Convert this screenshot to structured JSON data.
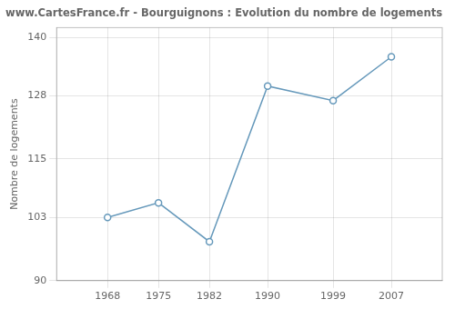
{
  "chart_data": {
    "type": "line",
    "title": "www.CartesFrance.fr - Bourguignons : Evolution du nombre de logements",
    "ylabel": "Nombre de logements",
    "x": [
      1968,
      1975,
      1982,
      1990,
      1999,
      2007
    ],
    "values": [
      103,
      106,
      98,
      130,
      127,
      136
    ],
    "color": "#6699bb",
    "marker": "circle",
    "xlim": [
      1961,
      2014
    ],
    "xticks": [
      1968,
      1975,
      1982,
      1990,
      1999,
      2007
    ],
    "ylim": [
      90,
      142
    ],
    "yticks": [
      90,
      103,
      115,
      128,
      140
    ],
    "grid": true
  }
}
